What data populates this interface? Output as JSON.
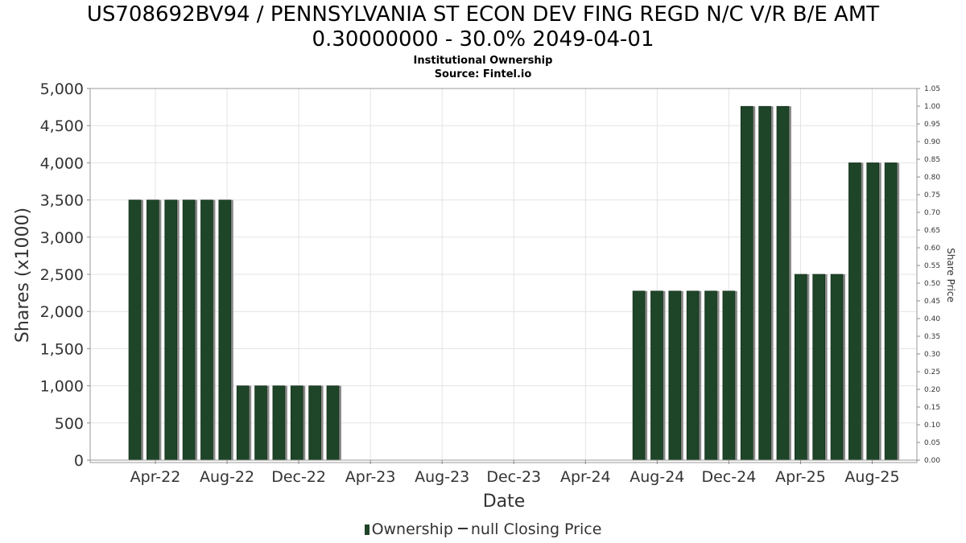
{
  "chart_data": {
    "type": "bar",
    "title": "US708692BV94 / PENNSYLVANIA ST ECON DEV FING REGD N/C V/R B/E AMT 0.30000000 - 30.0% 2049-04-01",
    "title_line1": "US708692BV94 / PENNSYLVANIA ST ECON DEV FING REGD N/C V/R B/E AMT",
    "title_line2": "0.30000000 - 30.0% 2049-04-01",
    "subtitle": "Institutional Ownership",
    "source": "Source: Fintel.io",
    "xlabel": "Date",
    "ylabel": "Shares (x1000)",
    "y2label": "Share Price",
    "ylim": [
      0,
      5000
    ],
    "y2lim": [
      0,
      1.05
    ],
    "yticks": [
      "0",
      "500",
      "1,000",
      "1,500",
      "2,000",
      "2,500",
      "3,000",
      "3,500",
      "4,000",
      "4,500",
      "5,000"
    ],
    "y2ticks": [
      "0.00",
      "0.05",
      "0.10",
      "0.15",
      "0.20",
      "0.25",
      "0.30",
      "0.35",
      "0.40",
      "0.45",
      "0.50",
      "0.55",
      "0.60",
      "0.65",
      "0.70",
      "0.75",
      "0.80",
      "0.85",
      "0.90",
      "0.95",
      "1.00",
      "1.05"
    ],
    "xticks": [
      "Apr-22",
      "Aug-22",
      "Dec-22",
      "Apr-23",
      "Aug-23",
      "Dec-23",
      "Apr-24",
      "Aug-24",
      "Dec-24",
      "Apr-25",
      "Aug-25"
    ],
    "grid": true,
    "legend_position": "bottom",
    "series": [
      {
        "name": "Ownership",
        "color": "#1e4528",
        "values": [
          3500,
          3500,
          3500,
          3500,
          3500,
          3500,
          1000,
          1000,
          1000,
          1000,
          1000,
          1000,
          0,
          0,
          0,
          0,
          0,
          0,
          0,
          0,
          0,
          0,
          0,
          0,
          0,
          0,
          0,
          0,
          2275,
          2275,
          2275,
          2275,
          2275,
          2275,
          4760,
          4760,
          4760,
          2500,
          2500,
          2500,
          4000,
          4000,
          4000
        ]
      },
      {
        "name": "null Closing Price",
        "color": "#333333",
        "values": []
      }
    ]
  }
}
